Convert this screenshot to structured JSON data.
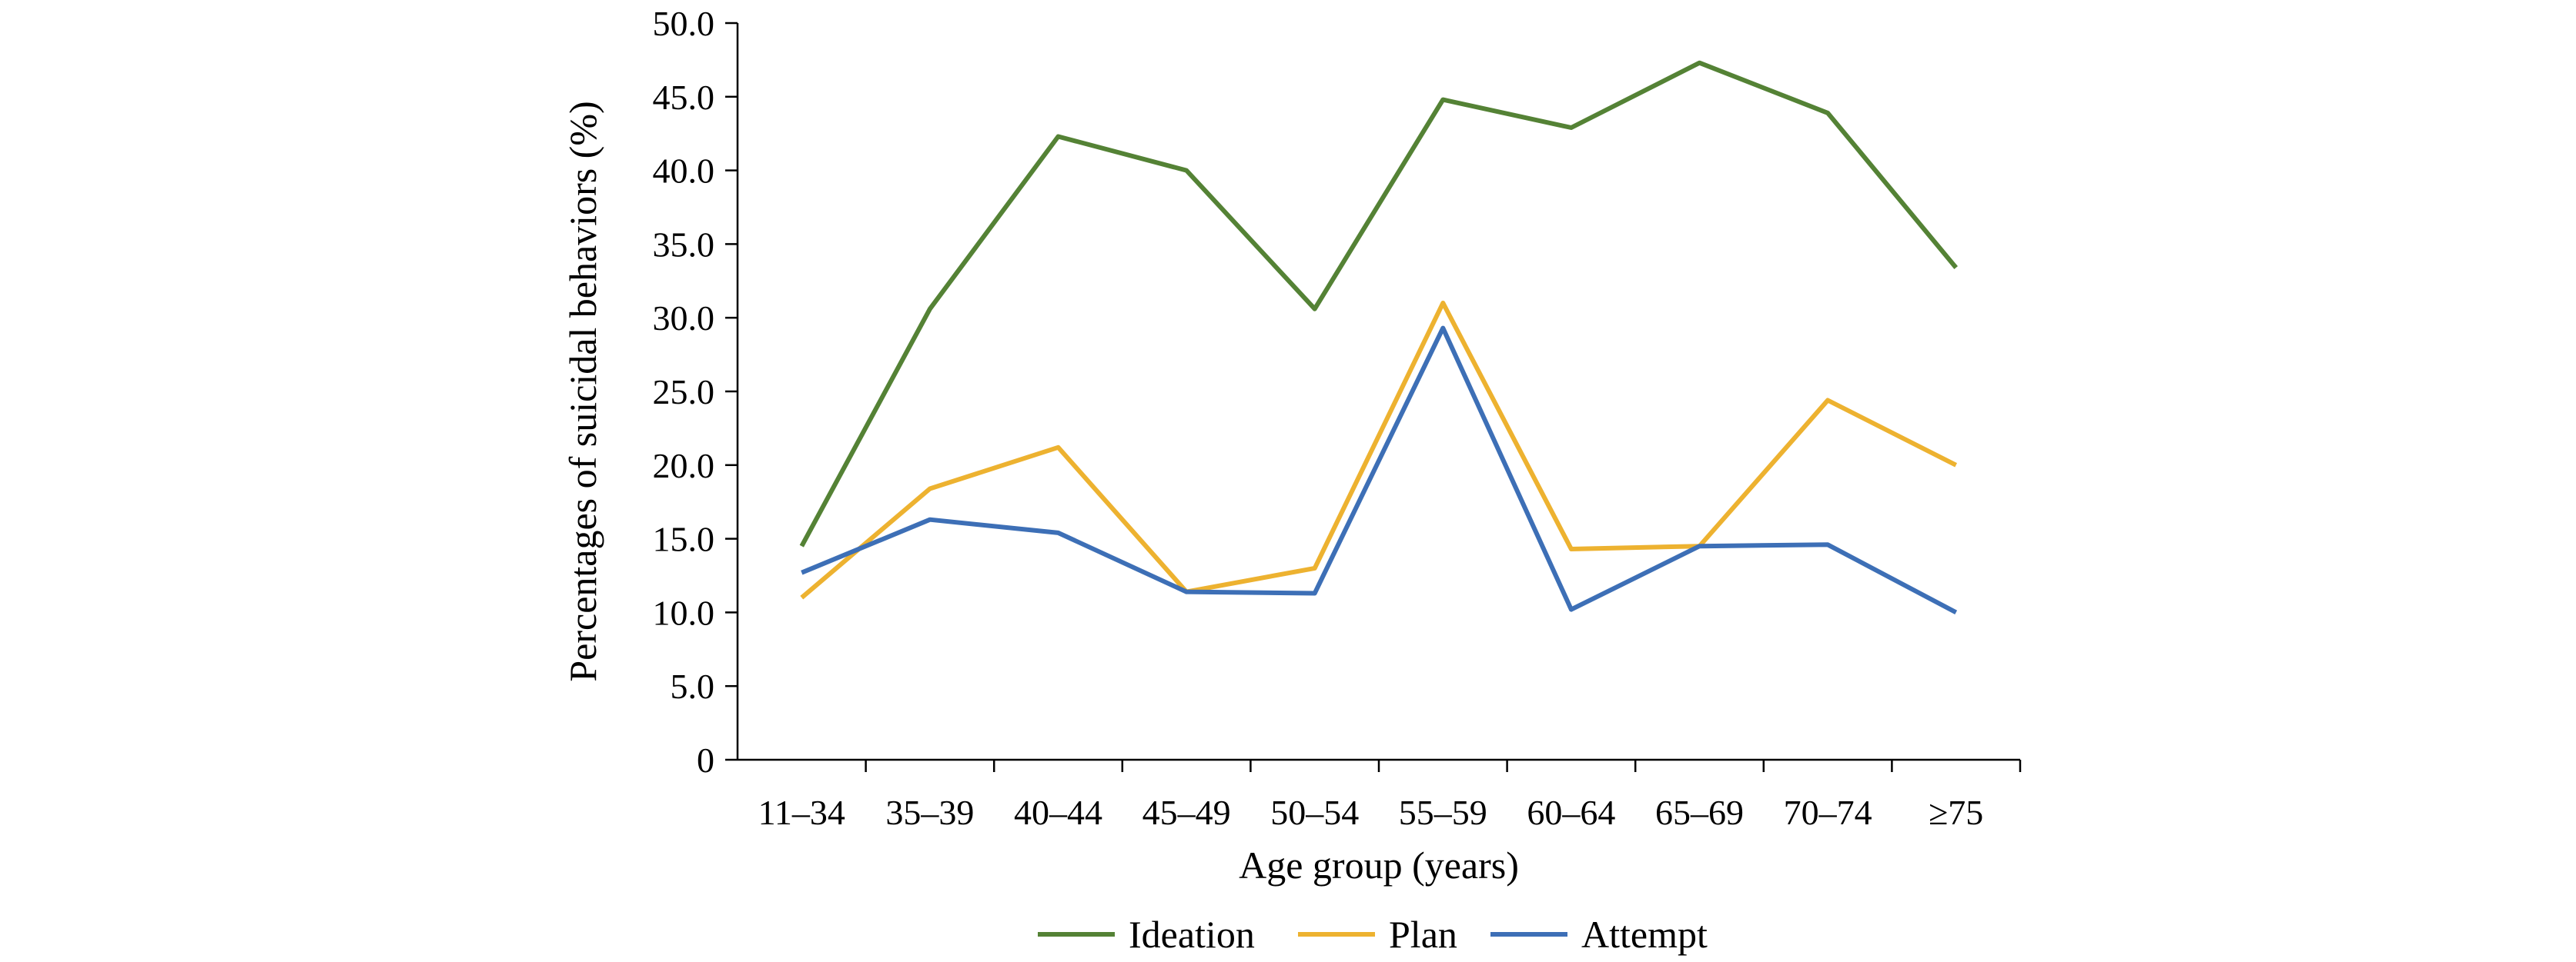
{
  "chart_data": {
    "type": "line",
    "title": "",
    "xlabel": "Age group (years)",
    "ylabel": "Percentages of suicidal behaviors (%)",
    "ylim": [
      0,
      50
    ],
    "yticks": [
      "0",
      "5.0",
      "10.0",
      "15.0",
      "20.0",
      "25.0",
      "30.0",
      "35.0",
      "40.0",
      "45.0",
      "50.0"
    ],
    "categories": [
      "11–34",
      "35–39",
      "40–44",
      "45–49",
      "50–54",
      "55–59",
      "60–64",
      "65–69",
      "70–74",
      "≥75"
    ],
    "grid": false,
    "legend_position": "bottom",
    "series": [
      {
        "name": "Ideation",
        "color": "#548235",
        "values": [
          14.5,
          30.6,
          42.3,
          40.0,
          30.6,
          44.8,
          42.9,
          47.3,
          43.9,
          33.4
        ]
      },
      {
        "name": "Plan",
        "color": "#EDB230",
        "values": [
          11.0,
          18.4,
          21.2,
          11.4,
          13.0,
          31.0,
          14.3,
          14.5,
          24.4,
          20.0
        ]
      },
      {
        "name": "Attempt",
        "color": "#3D6FB6",
        "values": [
          12.7,
          16.3,
          15.4,
          11.4,
          11.3,
          29.3,
          10.2,
          14.5,
          14.6,
          10.0
        ]
      }
    ]
  }
}
